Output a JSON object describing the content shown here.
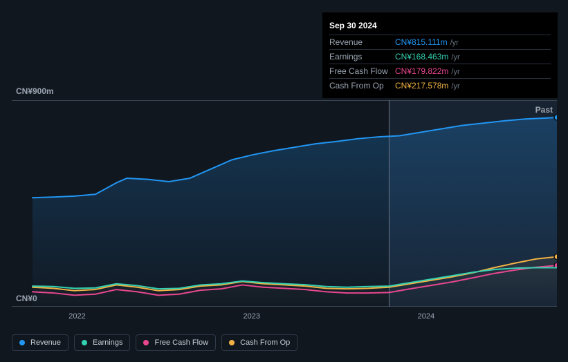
{
  "chart": {
    "type": "line",
    "background_color": "#11171f",
    "plot_fill_top": "#1a2736",
    "plot_fill_bottom": "#141b24",
    "grid_color": "#3a4450",
    "past_label": "Past",
    "y_axis": {
      "max_label": "CN¥900m",
      "min_label": "CN¥0",
      "min": 0,
      "max": 900
    },
    "x_axis": {
      "ticks": [
        {
          "label": "2022",
          "pos": 0.12
        },
        {
          "label": "2023",
          "pos": 0.44
        },
        {
          "label": "2024",
          "pos": 0.76
        }
      ],
      "domain_start": 2021.63,
      "domain_end": 2024.75
    },
    "vertical_cursor_pos": 0.68,
    "series": [
      {
        "id": "revenue",
        "label": "Revenue",
        "color": "#2196f3",
        "fill": true,
        "fill_opacity_top": 0.25,
        "fill_opacity_bottom": 0.02,
        "stroke_width": 2,
        "points": [
          {
            "x": 0.0,
            "y": 475
          },
          {
            "x": 0.04,
            "y": 478
          },
          {
            "x": 0.08,
            "y": 482
          },
          {
            "x": 0.12,
            "y": 490
          },
          {
            "x": 0.16,
            "y": 540
          },
          {
            "x": 0.18,
            "y": 560
          },
          {
            "x": 0.22,
            "y": 555
          },
          {
            "x": 0.26,
            "y": 545
          },
          {
            "x": 0.3,
            "y": 560
          },
          {
            "x": 0.34,
            "y": 600
          },
          {
            "x": 0.38,
            "y": 640
          },
          {
            "x": 0.42,
            "y": 662
          },
          {
            "x": 0.46,
            "y": 680
          },
          {
            "x": 0.5,
            "y": 695
          },
          {
            "x": 0.54,
            "y": 710
          },
          {
            "x": 0.58,
            "y": 720
          },
          {
            "x": 0.62,
            "y": 732
          },
          {
            "x": 0.66,
            "y": 740
          },
          {
            "x": 0.7,
            "y": 745
          },
          {
            "x": 0.74,
            "y": 760
          },
          {
            "x": 0.78,
            "y": 775
          },
          {
            "x": 0.82,
            "y": 790
          },
          {
            "x": 0.86,
            "y": 800
          },
          {
            "x": 0.9,
            "y": 810
          },
          {
            "x": 0.94,
            "y": 818
          },
          {
            "x": 0.98,
            "y": 822
          },
          {
            "x": 1.0,
            "y": 825
          }
        ],
        "end_marker": true
      },
      {
        "id": "cash_from_op",
        "label": "Cash From Op",
        "color": "#f0b244",
        "fill": true,
        "fill_opacity_top": 0.08,
        "fill_opacity_bottom": 0.0,
        "stroke_width": 2,
        "points": [
          {
            "x": 0.0,
            "y": 85
          },
          {
            "x": 0.04,
            "y": 80
          },
          {
            "x": 0.08,
            "y": 70
          },
          {
            "x": 0.12,
            "y": 75
          },
          {
            "x": 0.16,
            "y": 95
          },
          {
            "x": 0.2,
            "y": 85
          },
          {
            "x": 0.24,
            "y": 70
          },
          {
            "x": 0.28,
            "y": 75
          },
          {
            "x": 0.32,
            "y": 90
          },
          {
            "x": 0.36,
            "y": 95
          },
          {
            "x": 0.4,
            "y": 110
          },
          {
            "x": 0.44,
            "y": 100
          },
          {
            "x": 0.48,
            "y": 95
          },
          {
            "x": 0.52,
            "y": 90
          },
          {
            "x": 0.56,
            "y": 80
          },
          {
            "x": 0.6,
            "y": 78
          },
          {
            "x": 0.64,
            "y": 80
          },
          {
            "x": 0.68,
            "y": 85
          },
          {
            "x": 0.72,
            "y": 100
          },
          {
            "x": 0.76,
            "y": 115
          },
          {
            "x": 0.8,
            "y": 130
          },
          {
            "x": 0.84,
            "y": 148
          },
          {
            "x": 0.88,
            "y": 170
          },
          {
            "x": 0.92,
            "y": 190
          },
          {
            "x": 0.96,
            "y": 208
          },
          {
            "x": 1.0,
            "y": 218
          }
        ],
        "end_marker": true
      },
      {
        "id": "free_cash_flow",
        "label": "Free Cash Flow",
        "color": "#e8478f",
        "fill": false,
        "stroke_width": 2,
        "points": [
          {
            "x": 0.0,
            "y": 65
          },
          {
            "x": 0.04,
            "y": 60
          },
          {
            "x": 0.08,
            "y": 50
          },
          {
            "x": 0.12,
            "y": 55
          },
          {
            "x": 0.16,
            "y": 75
          },
          {
            "x": 0.2,
            "y": 65
          },
          {
            "x": 0.24,
            "y": 50
          },
          {
            "x": 0.28,
            "y": 55
          },
          {
            "x": 0.32,
            "y": 72
          },
          {
            "x": 0.36,
            "y": 78
          },
          {
            "x": 0.4,
            "y": 95
          },
          {
            "x": 0.44,
            "y": 85
          },
          {
            "x": 0.48,
            "y": 80
          },
          {
            "x": 0.52,
            "y": 75
          },
          {
            "x": 0.56,
            "y": 65
          },
          {
            "x": 0.6,
            "y": 60
          },
          {
            "x": 0.64,
            "y": 60
          },
          {
            "x": 0.68,
            "y": 62
          },
          {
            "x": 0.72,
            "y": 78
          },
          {
            "x": 0.76,
            "y": 93
          },
          {
            "x": 0.8,
            "y": 108
          },
          {
            "x": 0.84,
            "y": 126
          },
          {
            "x": 0.88,
            "y": 145
          },
          {
            "x": 0.92,
            "y": 160
          },
          {
            "x": 0.96,
            "y": 172
          },
          {
            "x": 1.0,
            "y": 180
          }
        ],
        "end_marker": true
      },
      {
        "id": "earnings",
        "label": "Earnings",
        "color": "#34d1b2",
        "fill": false,
        "stroke_width": 2,
        "points": [
          {
            "x": 0.0,
            "y": 90
          },
          {
            "x": 0.04,
            "y": 88
          },
          {
            "x": 0.08,
            "y": 80
          },
          {
            "x": 0.12,
            "y": 82
          },
          {
            "x": 0.16,
            "y": 100
          },
          {
            "x": 0.2,
            "y": 92
          },
          {
            "x": 0.24,
            "y": 78
          },
          {
            "x": 0.28,
            "y": 80
          },
          {
            "x": 0.32,
            "y": 95
          },
          {
            "x": 0.36,
            "y": 100
          },
          {
            "x": 0.4,
            "y": 112
          },
          {
            "x": 0.44,
            "y": 105
          },
          {
            "x": 0.48,
            "y": 100
          },
          {
            "x": 0.52,
            "y": 96
          },
          {
            "x": 0.56,
            "y": 88
          },
          {
            "x": 0.6,
            "y": 85
          },
          {
            "x": 0.64,
            "y": 88
          },
          {
            "x": 0.68,
            "y": 90
          },
          {
            "x": 0.72,
            "y": 105
          },
          {
            "x": 0.76,
            "y": 120
          },
          {
            "x": 0.8,
            "y": 135
          },
          {
            "x": 0.84,
            "y": 150
          },
          {
            "x": 0.88,
            "y": 162
          },
          {
            "x": 0.92,
            "y": 168
          },
          {
            "x": 0.96,
            "y": 170
          },
          {
            "x": 1.0,
            "y": 170
          }
        ],
        "end_marker": false
      }
    ]
  },
  "tooltip": {
    "date": "Sep 30 2024",
    "suffix": "/yr",
    "rows": [
      {
        "label": "Revenue",
        "value": "CN¥815.111m",
        "color": "#2196f3"
      },
      {
        "label": "Earnings",
        "value": "CN¥168.463m",
        "color": "#34d1b2"
      },
      {
        "label": "Free Cash Flow",
        "value": "CN¥179.822m",
        "color": "#e8478f"
      },
      {
        "label": "Cash From Op",
        "value": "CN¥217.578m",
        "color": "#f0b244"
      }
    ]
  },
  "legend": [
    {
      "id": "revenue",
      "label": "Revenue",
      "color": "#2196f3"
    },
    {
      "id": "earnings",
      "label": "Earnings",
      "color": "#34d1b2"
    },
    {
      "id": "free_cash_flow",
      "label": "Free Cash Flow",
      "color": "#e8478f"
    },
    {
      "id": "cash_from_op",
      "label": "Cash From Op",
      "color": "#f0b244"
    }
  ]
}
